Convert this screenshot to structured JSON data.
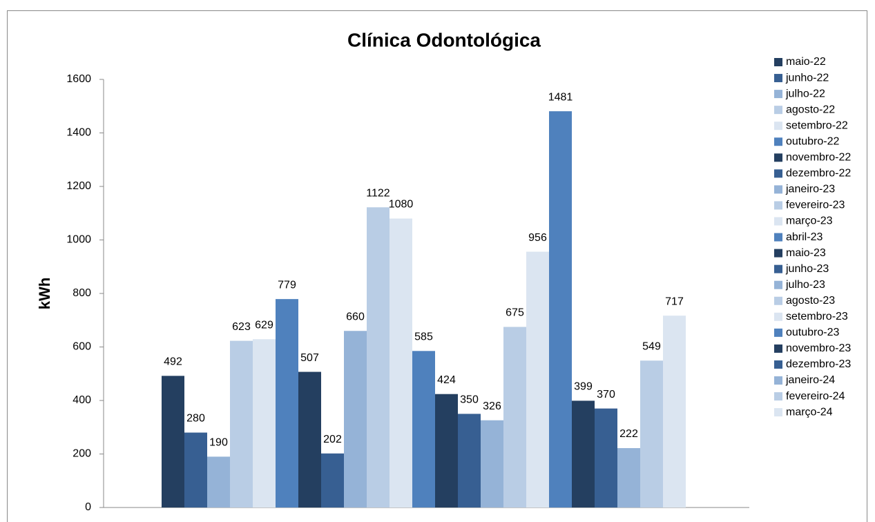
{
  "chart_data": {
    "type": "bar",
    "title": "Clínica Odontológica",
    "y_label": "kWh",
    "categories": [
      null
    ],
    "series": [
      {
        "name": "maio-22",
        "color": "#243f60",
        "values": [
          492
        ]
      },
      {
        "name": "junho-22",
        "color": "#375f92",
        "values": [
          280
        ]
      },
      {
        "name": "julho-22",
        "color": "#95b3d7",
        "values": [
          190
        ]
      },
      {
        "name": "agosto-22",
        "color": "#b9cde5",
        "values": [
          623
        ]
      },
      {
        "name": "setembro-22",
        "color": "#dbe5f1",
        "values": [
          629
        ]
      },
      {
        "name": "outubro-22",
        "color": "#4f81bd",
        "values": [
          779
        ]
      },
      {
        "name": "novembro-22",
        "color": "#243f60",
        "values": [
          507
        ]
      },
      {
        "name": "dezembro-22",
        "color": "#375f92",
        "values": [
          202
        ]
      },
      {
        "name": "janeiro-23",
        "color": "#95b3d7",
        "values": [
          660
        ]
      },
      {
        "name": "fevereiro-23",
        "color": "#b9cde5",
        "values": [
          1122
        ]
      },
      {
        "name": "março-23",
        "color": "#dbe5f1",
        "values": [
          1080
        ]
      },
      {
        "name": "abril-23",
        "color": "#4f81bd",
        "values": [
          585
        ]
      },
      {
        "name": "maio-23",
        "color": "#243f60",
        "values": [
          424
        ]
      },
      {
        "name": "junho-23",
        "color": "#375f92",
        "values": [
          350
        ]
      },
      {
        "name": "julho-23",
        "color": "#95b3d7",
        "values": [
          326
        ]
      },
      {
        "name": "agosto-23",
        "color": "#b9cde5",
        "values": [
          675
        ]
      },
      {
        "name": "setembro-23",
        "color": "#dbe5f1",
        "values": [
          956
        ]
      },
      {
        "name": "outubro-23",
        "color": "#4f81bd",
        "values": [
          1481
        ]
      },
      {
        "name": "novembro-23",
        "color": "#243f60",
        "values": [
          399
        ]
      },
      {
        "name": "dezembro-23",
        "color": "#375f92",
        "values": [
          370
        ]
      },
      {
        "name": "janeiro-24",
        "color": "#95b3d7",
        "values": [
          222
        ]
      },
      {
        "name": "fevereiro-24",
        "color": "#b9cde5",
        "values": [
          549
        ]
      },
      {
        "name": "março-24",
        "color": "#dbe5f1",
        "values": [
          717
        ]
      }
    ],
    "ylim": [
      0,
      1600
    ],
    "yticks": [
      0,
      200,
      400,
      600,
      800,
      1000,
      1200,
      1400,
      1600
    ],
    "legend": "right"
  }
}
